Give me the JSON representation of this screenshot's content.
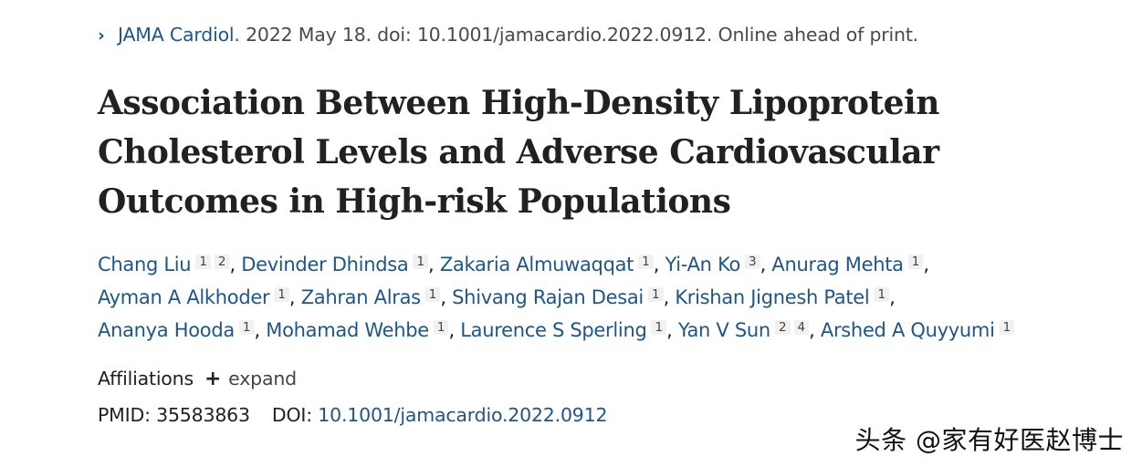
{
  "citation": {
    "journal": "JAMA Cardiol.",
    "details": " 2022 May 18. doi: 10.1001/jamacardio.2022.0912. Online ahead of print.",
    "chevron": "›"
  },
  "article": {
    "title": "Association Between High-Density Lipoprotein Cholesterol Levels and Adverse Cardiovascular Outcomes in High-risk Populations"
  },
  "authors": [
    {
      "name": "Chang Liu",
      "affs": [
        "1",
        "2"
      ]
    },
    {
      "name": "Devinder Dhindsa",
      "affs": [
        "1"
      ]
    },
    {
      "name": "Zakaria Almuwaqqat",
      "affs": [
        "1"
      ]
    },
    {
      "name": "Yi-An Ko",
      "affs": [
        "3"
      ]
    },
    {
      "name": "Anurag Mehta",
      "affs": [
        "1"
      ]
    },
    {
      "name": "Ayman A Alkhoder",
      "affs": [
        "1"
      ]
    },
    {
      "name": "Zahran Alras",
      "affs": [
        "1"
      ]
    },
    {
      "name": "Shivang Rajan Desai",
      "affs": [
        "1"
      ]
    },
    {
      "name": "Krishan Jignesh Patel",
      "affs": [
        "1"
      ]
    },
    {
      "name": "Ananya Hooda",
      "affs": [
        "1"
      ]
    },
    {
      "name": "Mohamad Wehbe",
      "affs": [
        "1"
      ]
    },
    {
      "name": "Laurence S Sperling",
      "affs": [
        "1"
      ]
    },
    {
      "name": "Yan V Sun",
      "affs": [
        "2",
        "4"
      ]
    },
    {
      "name": "Arshed A Quyyumi",
      "affs": [
        "1"
      ]
    }
  ],
  "affiliations": {
    "label": "Affiliations",
    "plus": "+",
    "expand": "expand"
  },
  "identifiers": {
    "pmid_label": "PMID:",
    "pmid": "35583863",
    "doi_label": "DOI:",
    "doi": "10.1001/jamacardio.2022.0912"
  },
  "watermark": "头条 @家有好医赵博士"
}
